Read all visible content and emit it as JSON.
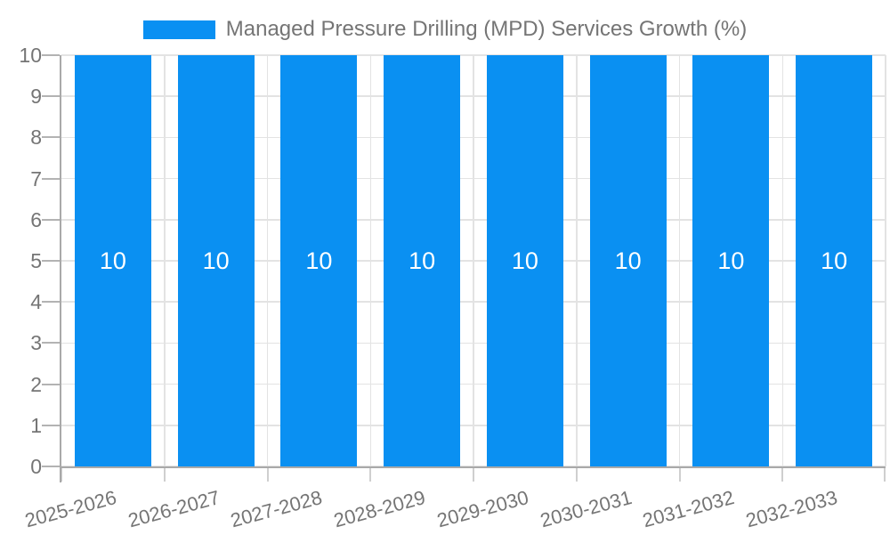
{
  "colors": {
    "bar": "#0a90f2",
    "text": "#757575",
    "grid": "#e3e3e3",
    "axis": "#a9a9a9",
    "ytick": "#b3b3b3",
    "xtick": "#cfcfcf",
    "bar_value_label": "#ffffff",
    "background": "#ffffff"
  },
  "chart_data": {
    "type": "bar",
    "title": "Managed Pressure Drilling (MPD) Services Growth (%)",
    "categories": [
      "2025-2026",
      "2026-2027",
      "2027-2028",
      "2028-2029",
      "2029-2030",
      "2030-2031",
      "2031-2032",
      "2032-2033"
    ],
    "values": [
      10,
      10,
      10,
      10,
      10,
      10,
      10,
      10
    ],
    "series": [
      {
        "name": "Managed Pressure Drilling (MPD) Services Growth (%)",
        "values": [
          10,
          10,
          10,
          10,
          10,
          10,
          10,
          10
        ]
      }
    ],
    "xlabel": "",
    "ylabel": "",
    "ylim": [
      0,
      10
    ],
    "yticks": [
      0,
      1,
      2,
      3,
      4,
      5,
      6,
      7,
      8,
      9,
      10
    ],
    "grid": "on",
    "legend_position": "top-center",
    "x_label_rotation_deg": -15,
    "bar_value_labels_shown": true
  }
}
